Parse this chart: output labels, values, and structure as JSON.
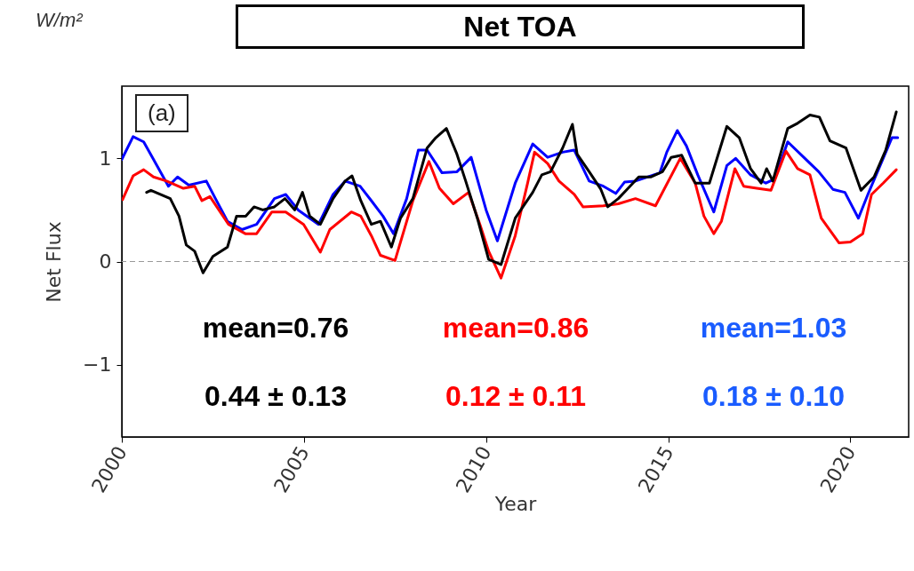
{
  "chart_data": {
    "type": "line",
    "title": "Net TOA",
    "ylabel": "Net Flux",
    "xlabel": "Year",
    "annotations": [
      "W/m²",
      "(a)",
      "mean=0.76",
      "mean=0.86",
      "mean=1.03",
      "0.44 ± 0.13",
      "0.12 ± 0.11",
      "0.18 ± 0.10"
    ],
    "xlim": [
      2000,
      2021.6
    ],
    "xticks": [
      2000,
      2005,
      2010,
      2015,
      2020
    ],
    "ylim": [
      -1.7,
      1.7
    ],
    "yticks": [
      {
        "value": -1,
        "label": "−1"
      },
      0,
      1
    ],
    "grid": false,
    "line_style": "solid",
    "ref_lines": [
      {
        "axis": "y",
        "value": 0,
        "color": "#999999",
        "line_style": "dashed"
      }
    ],
    "series": [
      {
        "color": "#000000",
        "x": [
          2000.68,
          2000.8,
          2001.33,
          2001.57,
          2001.77,
          2002.0,
          2002.23,
          2002.5,
          2002.9,
          2003.15,
          2003.4,
          2003.63,
          2003.87,
          2004.19,
          2004.48,
          2004.75,
          2004.96,
          2005.16,
          2005.45,
          2005.8,
          2006.13,
          2006.32,
          2006.56,
          2006.85,
          2007.1,
          2007.4,
          2007.65,
          2007.99,
          2008.38,
          2008.62,
          2008.91,
          2009.2,
          2009.44,
          2009.76,
          2010.07,
          2010.41,
          2010.8,
          2011.28,
          2011.53,
          2011.77,
          2012.1,
          2012.37,
          2012.5,
          2012.83,
          2013.15,
          2013.34,
          2013.63,
          2013.87,
          2014.19,
          2014.53,
          2014.84,
          2015.08,
          2015.37,
          2015.74,
          2016.13,
          2016.61,
          2016.95,
          2017.26,
          2017.55,
          2017.7,
          2017.87,
          2018.28,
          2018.55,
          2018.89,
          2019.15,
          2019.44,
          2019.88,
          2020.29,
          2020.65,
          2020.97,
          2021.26
        ],
        "values": [
          0.67,
          0.69,
          0.61,
          0.44,
          0.16,
          0.1,
          -0.11,
          0.05,
          0.14,
          0.44,
          0.44,
          0.53,
          0.5,
          0.53,
          0.61,
          0.5,
          0.67,
          0.44,
          0.36,
          0.61,
          0.78,
          0.83,
          0.59,
          0.36,
          0.39,
          0.14,
          0.42,
          0.61,
          1.1,
          1.2,
          1.29,
          1.04,
          0.78,
          0.42,
          0.02,
          -0.03,
          0.42,
          0.67,
          0.84,
          0.87,
          1.1,
          1.33,
          1.04,
          0.87,
          0.7,
          0.53,
          0.61,
          0.7,
          0.82,
          0.82,
          0.87,
          1.01,
          1.03,
          0.76,
          0.76,
          1.31,
          1.2,
          0.9,
          0.76,
          0.9,
          0.78,
          1.29,
          1.34,
          1.42,
          1.4,
          1.17,
          1.1,
          0.69,
          0.82,
          1.08,
          1.45
        ]
      },
      {
        "color": "#ff0000",
        "x": [
          2000.02,
          2000.31,
          2000.6,
          2000.87,
          2001.23,
          2001.69,
          2002.0,
          2002.2,
          2002.42,
          2002.93,
          2003.39,
          2003.7,
          2004.12,
          2004.5,
          2004.99,
          2005.45,
          2005.71,
          2006.3,
          2006.56,
          2006.85,
          2007.1,
          2007.5,
          2007.99,
          2008.43,
          2008.72,
          2009.1,
          2009.52,
          2009.83,
          2010.07,
          2010.41,
          2010.8,
          2011.14,
          2011.33,
          2011.69,
          2012.0,
          2012.42,
          2012.66,
          2013.22,
          2013.63,
          2014.1,
          2014.65,
          2015.33,
          2015.74,
          2015.98,
          2016.25,
          2016.46,
          2016.83,
          2017.07,
          2017.43,
          2017.82,
          2018.23,
          2018.55,
          2018.89,
          2019.2,
          2019.69,
          2020.0,
          2020.34,
          2020.58,
          2020.9,
          2021.26
        ],
        "values": [
          0.6,
          0.83,
          0.89,
          0.82,
          0.78,
          0.71,
          0.73,
          0.59,
          0.63,
          0.36,
          0.27,
          0.27,
          0.48,
          0.48,
          0.36,
          0.09,
          0.31,
          0.48,
          0.44,
          0.25,
          0.06,
          0.01,
          0.59,
          0.97,
          0.71,
          0.56,
          0.67,
          0.36,
          0.1,
          -0.16,
          0.25,
          0.76,
          1.06,
          0.95,
          0.78,
          0.65,
          0.53,
          0.54,
          0.56,
          0.61,
          0.54,
          1.0,
          0.76,
          0.44,
          0.27,
          0.39,
          0.9,
          0.73,
          0.71,
          0.69,
          1.07,
          0.9,
          0.84,
          0.42,
          0.18,
          0.19,
          0.27,
          0.65,
          0.76,
          0.89
        ]
      },
      {
        "color": "#0000ff",
        "x": [
          2000.0,
          2000.31,
          2000.6,
          2000.87,
          2001.28,
          2001.53,
          2001.84,
          2002.32,
          2002.57,
          2002.9,
          2003.3,
          2003.7,
          2004.19,
          2004.5,
          2004.84,
          2005.4,
          2005.8,
          2006.13,
          2006.54,
          2006.85,
          2007.17,
          2007.46,
          2007.82,
          2008.14,
          2008.38,
          2008.79,
          2009.2,
          2009.59,
          2010.0,
          2010.31,
          2010.8,
          2011.28,
          2011.69,
          2012.1,
          2012.42,
          2012.83,
          2013.22,
          2013.56,
          2013.8,
          2014.1,
          2014.77,
          2014.96,
          2015.25,
          2015.5,
          2015.81,
          2016.25,
          2016.61,
          2016.85,
          2017.26,
          2017.68,
          2017.92,
          2018.28,
          2018.72,
          2019.13,
          2019.52,
          2019.85,
          2020.22,
          2020.48,
          2020.9,
          2021.14,
          2021.3
        ],
        "values": [
          0.99,
          1.21,
          1.16,
          0.99,
          0.73,
          0.82,
          0.74,
          0.78,
          0.61,
          0.39,
          0.31,
          0.36,
          0.61,
          0.65,
          0.5,
          0.36,
          0.65,
          0.78,
          0.73,
          0.59,
          0.44,
          0.27,
          0.61,
          1.08,
          1.08,
          0.86,
          0.87,
          1.01,
          0.5,
          0.2,
          0.76,
          1.14,
          1.01,
          1.06,
          1.08,
          0.78,
          0.73,
          0.66,
          0.77,
          0.78,
          0.86,
          1.06,
          1.27,
          1.12,
          0.84,
          0.48,
          0.93,
          1.0,
          0.84,
          0.76,
          0.8,
          1.16,
          1.01,
          0.87,
          0.7,
          0.67,
          0.42,
          0.65,
          1.0,
          1.2,
          1.2
        ]
      }
    ]
  }
}
